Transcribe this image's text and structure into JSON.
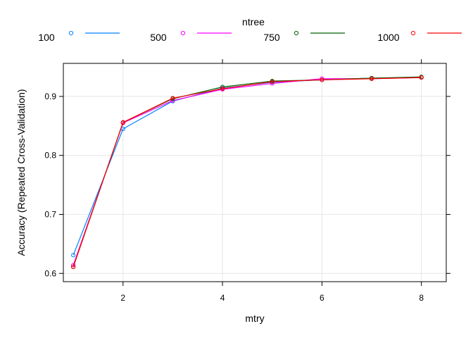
{
  "chart_data": {
    "type": "line",
    "title": "",
    "xlabel": "mtry",
    "ylabel": "Accuracy (Repeated Cross-Validation)",
    "legend_title": "ntree",
    "legend_position": "top",
    "grid": true,
    "xlim": [
      0.8,
      8.5
    ],
    "ylim": [
      0.586,
      0.956
    ],
    "x_ticks": [
      2,
      4,
      6,
      8
    ],
    "y_ticks": [
      0.6,
      0.7,
      0.8,
      0.9
    ],
    "x_tick_labels": [
      "2",
      "4",
      "6",
      "8"
    ],
    "y_tick_labels": [
      "0.6",
      "0.7",
      "0.8",
      "0.9"
    ],
    "x": [
      1,
      2,
      3,
      4,
      5,
      6,
      7,
      8
    ],
    "series": [
      {
        "name": "100",
        "color": "#0080ff",
        "values": [
          0.631,
          0.845,
          0.892,
          0.914,
          0.924,
          0.928,
          0.931,
          0.932
        ]
      },
      {
        "name": "500",
        "color": "#ff00ff",
        "values": [
          0.614,
          0.855,
          0.893,
          0.912,
          0.922,
          0.93,
          0.93,
          0.932
        ]
      },
      {
        "name": "750",
        "color": "#006400",
        "values": [
          0.611,
          0.856,
          0.896,
          0.916,
          0.926,
          0.928,
          0.931,
          0.933
        ]
      },
      {
        "name": "1000",
        "color": "#ff0000",
        "values": [
          0.611,
          0.856,
          0.897,
          0.913,
          0.925,
          0.928,
          0.93,
          0.932
        ]
      }
    ]
  }
}
